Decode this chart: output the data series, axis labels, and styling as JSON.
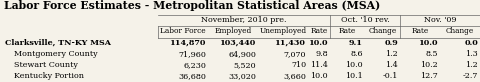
{
  "title": "Labor Force Estimates - Metropolitan Statistical Areas (MSA)",
  "subtitle_nov": "November, 2010 pre.",
  "subtitle_oct": "Oct. '10 rev.",
  "subtitle_nov09": "Nov. '09",
  "col_headers": [
    "Labor Force",
    "Employed",
    "Unemployed",
    "Rate",
    "Rate",
    "Change",
    "Rate",
    "Change"
  ],
  "rows": [
    {
      "label": "Clarksville, TN-KY MSA",
      "bold": true,
      "indent": false,
      "values": [
        "114,870",
        "103,440",
        "11,430",
        "10.0",
        "9.1",
        "0.9",
        "10.0",
        "0.0"
      ]
    },
    {
      "label": "Montgomery County",
      "bold": false,
      "indent": true,
      "values": [
        "71,960",
        "64,900",
        "7,070",
        "9.8",
        "8.6",
        "1.2",
        "8.5",
        "1.3"
      ]
    },
    {
      "label": "Stewart County",
      "bold": false,
      "indent": true,
      "values": [
        "6,230",
        "5,520",
        "710",
        "11.4",
        "10.0",
        "1.4",
        "10.2",
        "1.2"
      ]
    },
    {
      "label": "Kentucky Portion",
      "bold": false,
      "indent": true,
      "values": [
        "36,680",
        "33,020",
        "3,660",
        "10.0",
        "10.1",
        "-0.1",
        "12.7",
        "-2.7"
      ]
    }
  ],
  "bg_color": "#f5f2e9",
  "line_color": "#888888",
  "title_fontsize": 7.8,
  "header_fontsize": 5.5,
  "data_fontsize": 5.8
}
